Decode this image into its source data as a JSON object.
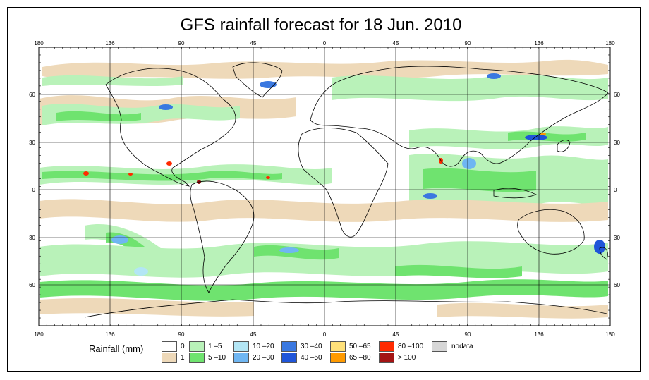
{
  "title": "GFS rainfall forecast for 18 Jun. 2010",
  "lon_labels": [
    "180",
    "136",
    "90",
    "45",
    "0",
    "45",
    "90",
    "136",
    "180"
  ],
  "lat_labels": [
    "60",
    "30",
    "0",
    "30",
    "60"
  ],
  "legend": {
    "title": "Rainfall (mm)",
    "items": [
      {
        "label": "0",
        "color": "#ffffff"
      },
      {
        "label": "1",
        "color": "#eed9b9"
      },
      {
        "label": "1 –5",
        "color": "#b9f2b9"
      },
      {
        "label": "5 –10",
        "color": "#6fe36f"
      },
      {
        "label": "10 –20",
        "color": "#b3e6f5"
      },
      {
        "label": "20 –30",
        "color": "#6fb6f2"
      },
      {
        "label": "30 –40",
        "color": "#3a78e0"
      },
      {
        "label": "40 –50",
        "color": "#1f55d9"
      },
      {
        "label": "50 –65",
        "color": "#ffe17a"
      },
      {
        "label": "65 –80",
        "color": "#ff9a00"
      },
      {
        "label": "80 –100",
        "color": "#ff2a00"
      },
      {
        "label": "> 100",
        "color": "#a31414"
      },
      {
        "label": "nodata",
        "color": "#d7d7d7"
      }
    ]
  }
}
